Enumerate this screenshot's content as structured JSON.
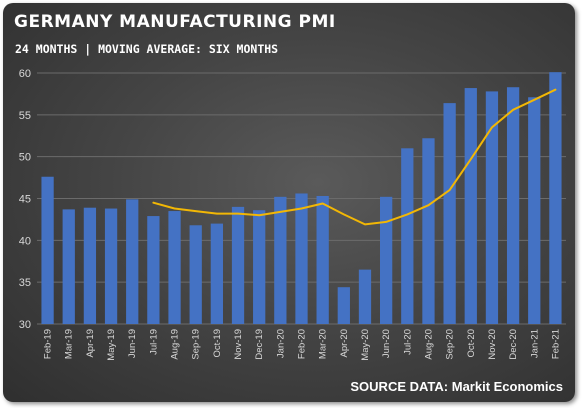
{
  "chart_data": {
    "type": "bar",
    "title": "GERMANY MANUFACTURING PMI",
    "subtitle": "24 MONTHS | MOVING AVERAGE: SIX MONTHS",
    "source": "SOURCE DATA: Markit Economics",
    "xlabel": "",
    "ylabel": "",
    "ylim": [
      30,
      60
    ],
    "yticks": [
      30,
      35,
      40,
      45,
      50,
      55,
      60
    ],
    "grid": true,
    "legend": "none",
    "categories": [
      "Feb-19",
      "Mar-19",
      "Apr-19",
      "May-19",
      "Jun-19",
      "Jul-19",
      "Aug-19",
      "Sep-19",
      "Oct-19",
      "Nov-19",
      "Dec-19",
      "Jan-20",
      "Feb-20",
      "Mar-20",
      "Apr-20",
      "May-20",
      "Jun-20",
      "Jul-20",
      "Aug-20",
      "Sep-20",
      "Oct-20",
      "Nov-20",
      "Dec-20",
      "Jan-21",
      "Feb-21"
    ],
    "series": [
      {
        "type": "bar",
        "values": [
          47.6,
          43.7,
          43.9,
          43.8,
          44.9,
          42.9,
          43.5,
          41.8,
          42.0,
          44.0,
          43.6,
          45.2,
          45.6,
          45.3,
          34.4,
          36.5,
          45.2,
          51.0,
          52.2,
          56.4,
          58.2,
          57.8,
          58.3,
          57.1,
          60.1
        ]
      },
      {
        "type": "line",
        "values": [
          null,
          null,
          null,
          null,
          null,
          44.5,
          43.8,
          43.5,
          43.2,
          43.2,
          43.0,
          43.4,
          43.8,
          44.4,
          43.1,
          41.9,
          42.2,
          43.1,
          44.2,
          46.0,
          49.7,
          53.5,
          55.6,
          56.8,
          58.0
        ]
      }
    ],
    "colors": {
      "bar": "#4472c4",
      "line": "#f2b705",
      "grid": "#6b6b6b",
      "tick": "#d8d8d8"
    }
  }
}
